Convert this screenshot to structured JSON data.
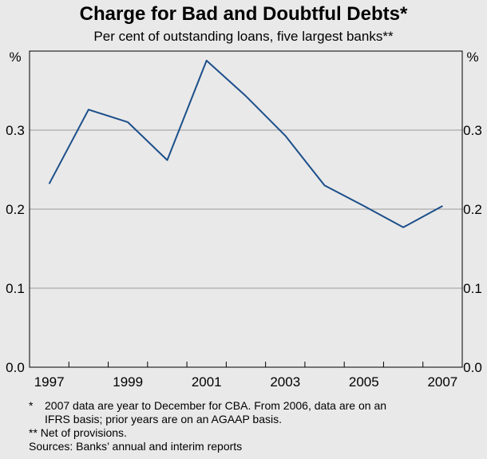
{
  "chart_data": {
    "type": "line",
    "title": "Charge for Bad and Doubtful Debts*",
    "subtitle": "Per cent of outstanding loans, five largest banks**",
    "left_unit_label": "%",
    "right_unit_label": "%",
    "ylim": [
      0.0,
      0.4
    ],
    "yticks": [
      0.0,
      0.1,
      0.2,
      0.3
    ],
    "ytick_labels": [
      "0.0",
      "0.1",
      "0.2",
      "0.3"
    ],
    "xlim": [
      1996.5,
      2007.5
    ],
    "xtick_labels": [
      "1997",
      "1999",
      "2001",
      "2003",
      "2005",
      "2007"
    ],
    "xtick_values": [
      1997,
      1999,
      2001,
      2003,
      2005,
      2007
    ],
    "grid": true,
    "series": [
      {
        "name": "Charge for bad and doubtful debts",
        "color": "#1c4f8a",
        "x": [
          1997,
          1998,
          1999,
          2000,
          2001,
          2002,
          2003,
          2004,
          2005,
          2006,
          2007
        ],
        "values": [
          0.232,
          0.326,
          0.31,
          0.262,
          0.388,
          0.343,
          0.293,
          0.23,
          0.204,
          0.177,
          0.204
        ]
      }
    ]
  },
  "footnotes": {
    "note1_mark": "*",
    "note1_line1": "2007 data are year to December for CBA. From 2006, data are on an",
    "note1_line2": "IFRS basis; prior years are on an AGAAP basis.",
    "note2": "** Net of provisions.",
    "sources": "Sources: Banks’ annual and interim reports"
  }
}
